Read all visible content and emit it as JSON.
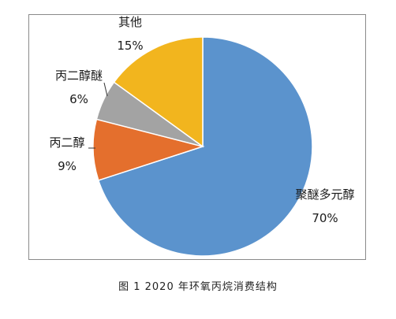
{
  "chart_data": {
    "type": "pie",
    "categories": [
      "聚醚多元醇",
      "丙二醇",
      "丙二醇醚",
      "其他"
    ],
    "values": [
      70,
      9,
      6,
      15
    ],
    "value_labels": [
      "70%",
      "9%",
      "6%",
      "15%"
    ],
    "colors": [
      "#5b93cd",
      "#e46f2d",
      "#a3a3a3",
      "#f2b51e"
    ],
    "start": "12 o'clock",
    "direction": "clockwise"
  },
  "caption": "图 1  2020 年环氧丙烷消费结构"
}
